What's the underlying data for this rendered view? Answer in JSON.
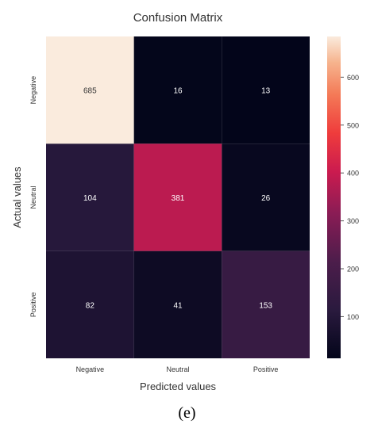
{
  "chart_data": {
    "type": "heatmap",
    "title": "Confusion Matrix",
    "xlabel": "Predicted values",
    "ylabel": "Actual values",
    "x_categories": [
      "Negative",
      "Neutral",
      "Positive"
    ],
    "y_categories": [
      "Negative",
      "Neutral",
      "Positive"
    ],
    "values": [
      [
        685,
        16,
        13
      ],
      [
        104,
        381,
        26
      ],
      [
        82,
        41,
        153
      ]
    ],
    "colorbar": {
      "range": [
        13,
        685
      ],
      "ticks": [
        100,
        200,
        300,
        400,
        500,
        600
      ],
      "colormap": "rocket"
    }
  },
  "caption": "(e)"
}
